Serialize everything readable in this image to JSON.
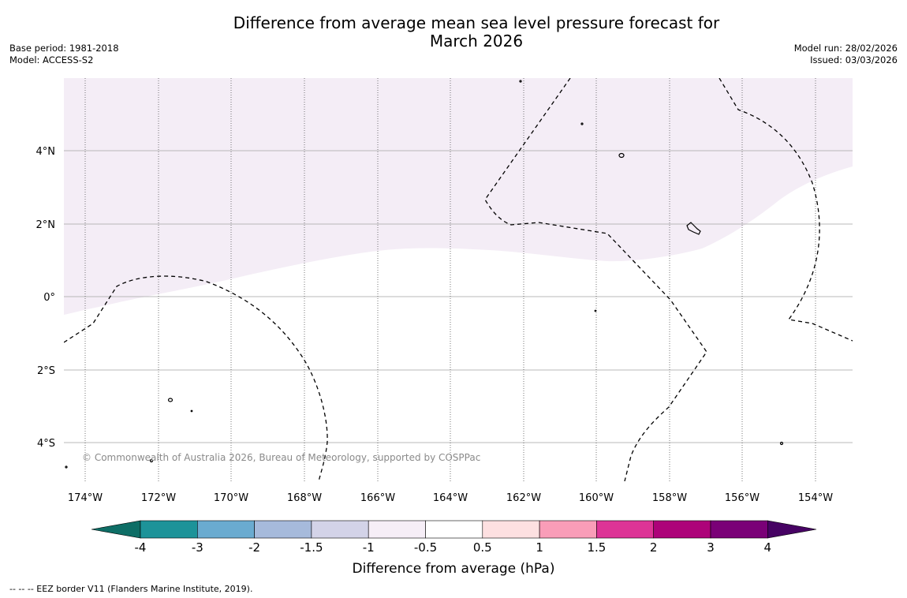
{
  "title_line1": "Difference from average mean sea level pressure forecast for",
  "title_line2": "March 2026",
  "meta_left": [
    "Base period: 1981-2018",
    "Model: ACCESS-S2"
  ],
  "meta_right": [
    "Model run: 28/02/2026",
    "Issued: 03/03/2026"
  ],
  "copyright": "© Commonwealth of Australia 2026, Bureau of Meteorology, supported by COSPPac",
  "footer": "--  --  -- EEZ border V11 (Flanders Marine Institute, 2019).",
  "chart_data": {
    "type": "map",
    "region_lon": [
      -174.6,
      -153.0
    ],
    "region_lat": [
      -4.8,
      5.9
    ],
    "lon_ticks": [
      "174°W",
      "172°W",
      "170°W",
      "168°W",
      "166°W",
      "164°W",
      "162°W",
      "160°W",
      "158°W",
      "156°W",
      "154°W"
    ],
    "lat_ticks": [
      "4°N",
      "2°N",
      "0°",
      "2°S",
      "4°S"
    ],
    "anomaly_field": {
      "northern_band_class": "-1 to -0.5",
      "rest_class": "-0.5 to 0.5",
      "units": "hPa"
    },
    "colorbar": {
      "title": "Difference from average (hPa)",
      "labels": [
        "-4",
        "-3",
        "-2",
        "-1.5",
        "-1",
        "-0.5",
        "0.5",
        "1",
        "1.5",
        "2",
        "3",
        "4"
      ],
      "colors": [
        "#0e6e66",
        "#1d9399",
        "#6aabd0",
        "#a6badb",
        "#d3d3e8",
        "#f6eef7",
        "#ffffff",
        "#fde0e1",
        "#f99db8",
        "#dd3496",
        "#ad0279",
        "#7a0177",
        "#470364"
      ]
    }
  }
}
